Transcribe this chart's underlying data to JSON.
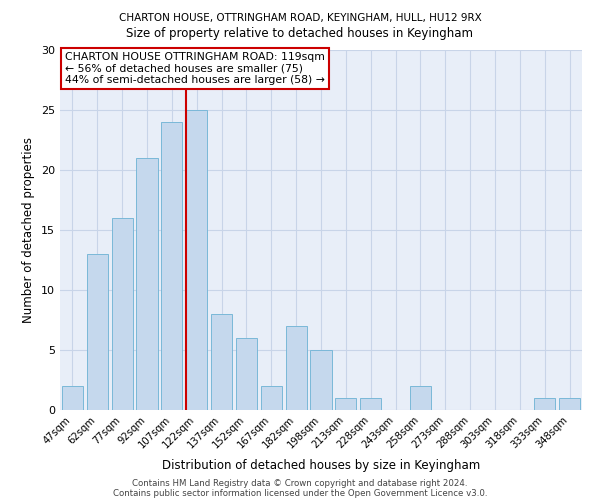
{
  "title1": "CHARTON HOUSE, OTTRINGHAM ROAD, KEYINGHAM, HULL, HU12 9RX",
  "title2": "Size of property relative to detached houses in Keyingham",
  "xlabel": "Distribution of detached houses by size in Keyingham",
  "ylabel": "Number of detached properties",
  "bar_labels": [
    "47sqm",
    "62sqm",
    "77sqm",
    "92sqm",
    "107sqm",
    "122sqm",
    "137sqm",
    "152sqm",
    "167sqm",
    "182sqm",
    "198sqm",
    "213sqm",
    "228sqm",
    "243sqm",
    "258sqm",
    "273sqm",
    "288sqm",
    "303sqm",
    "318sqm",
    "333sqm",
    "348sqm"
  ],
  "bar_values": [
    2,
    13,
    16,
    21,
    24,
    25,
    8,
    6,
    2,
    7,
    5,
    1,
    1,
    0,
    2,
    0,
    0,
    0,
    0,
    1,
    1
  ],
  "bar_color": "#c5d8ed",
  "bar_edgecolor": "#7ab8d8",
  "vline_x_index": 5,
  "vline_color": "#cc0000",
  "annotation_text": "CHARTON HOUSE OTTRINGHAM ROAD: 119sqm\n← 56% of detached houses are smaller (75)\n44% of semi-detached houses are larger (58) →",
  "annotation_box_edgecolor": "#cc0000",
  "ylim": [
    0,
    30
  ],
  "yticks": [
    0,
    5,
    10,
    15,
    20,
    25,
    30
  ],
  "grid_color": "#c8d4e8",
  "background_color": "#e8eef8",
  "title1_fontsize": 7.5,
  "title2_fontsize": 8.5,
  "footer1": "Contains HM Land Registry data © Crown copyright and database right 2024.",
  "footer2": "Contains public sector information licensed under the Open Government Licence v3.0."
}
